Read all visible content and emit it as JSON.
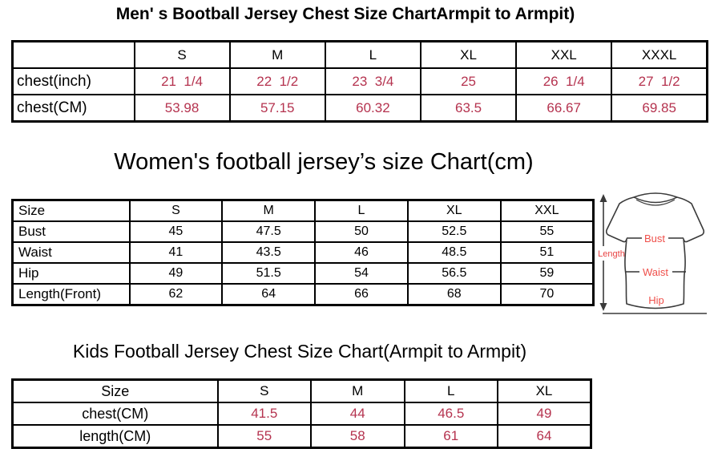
{
  "colors": {
    "value_red": "#b5334f",
    "shirt_label_red": "#ef4f4a",
    "border_black": "#000000",
    "shirt_outline_gray": "#3a3a3a",
    "background": "#ffffff"
  },
  "shirt": {
    "length_label": "Length",
    "bust_label": "Bust",
    "waist_label": "Waist",
    "hip_label": "Hip"
  },
  "chart_data": [
    {
      "type": "table",
      "title": "Men' s Bootball Jersey Chest Size ChartArmpit to Armpit)",
      "columns": [
        "",
        "S",
        "M",
        "L",
        "XL",
        "XXL",
        "XXXL"
      ],
      "rows": [
        {
          "label": "chest(inch)",
          "values": [
            "21  1/4",
            "22  1/2",
            "23  3/4",
            "25",
            "26  1/4",
            "27  1/2"
          ],
          "values_color": "#b5334f"
        },
        {
          "label": "chest(CM)",
          "values": [
            "53.98",
            "57.15",
            "60.32",
            "63.5",
            "66.67",
            "69.85"
          ],
          "values_color": "#b5334f"
        }
      ]
    },
    {
      "type": "table",
      "title": "Women's football jersey’s size Chart(cm)",
      "columns": [
        "Size",
        "S",
        "M",
        "L",
        "XL",
        "XXL"
      ],
      "rows": [
        {
          "label": "Bust",
          "values": [
            "45",
            "47.5",
            "50",
            "52.5",
            "55"
          ],
          "values_color": "#000000"
        },
        {
          "label": "Waist",
          "values": [
            "41",
            "43.5",
            "46",
            "48.5",
            "51"
          ],
          "values_color": "#000000"
        },
        {
          "label": "Hip",
          "values": [
            "49",
            "51.5",
            "54",
            "56.5",
            "59"
          ],
          "values_color": "#000000"
        },
        {
          "label": "Length(Front)",
          "values": [
            "62",
            "64",
            "66",
            "68",
            "70"
          ],
          "values_color": "#000000"
        }
      ],
      "diagram_labels": [
        "Length",
        "Bust",
        "Waist",
        "Hip"
      ]
    },
    {
      "type": "table",
      "title": "Kids Football Jersey Chest Size Chart(Armpit to Armpit)",
      "columns": [
        "Size",
        "S",
        "M",
        "L",
        "XL"
      ],
      "rows": [
        {
          "label": "chest(CM)",
          "values": [
            "41.5",
            "44",
            "46.5",
            "49"
          ],
          "values_color": "#b5334f"
        },
        {
          "label": "length(CM)",
          "values": [
            "55",
            "58",
            "61",
            "64"
          ],
          "values_color": "#b5334f"
        }
      ]
    }
  ]
}
